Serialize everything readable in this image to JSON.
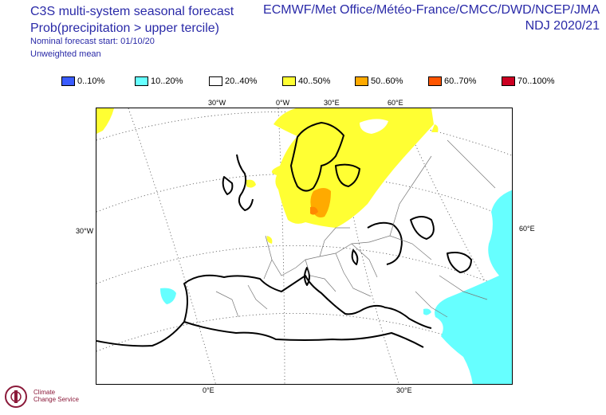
{
  "header": {
    "title_line1": "C3S multi-system seasonal forecast",
    "title_line2": "Prob(precipitation > upper tercile)",
    "forecast_start": "Nominal forecast start: 01/10/20",
    "weighting": "Unweighted mean",
    "sources": "ECMWF/Met Office/Météo-France/CMCC/DWD/NCEP/JMA",
    "period": "NDJ 2020/21"
  },
  "legend": [
    {
      "label": "0..10%",
      "color": "#3a5cff"
    },
    {
      "label": "10..20%",
      "color": "#66ffff"
    },
    {
      "label": "20..40%",
      "color": "#ffffff"
    },
    {
      "label": "40..50%",
      "color": "#ffff33"
    },
    {
      "label": "50..60%",
      "color": "#ffaa00"
    },
    {
      "label": "60..70%",
      "color": "#ff5500"
    },
    {
      "label": "70..100%",
      "color": "#cc0022"
    }
  ],
  "map": {
    "lon_labels_top": [
      "30°W",
      "0°W",
      "30°E",
      "60°E"
    ],
    "lat_label_left": "30°W",
    "lat_label_right": "60°E",
    "lon_labels_bottom": [
      "0°E",
      "30°E"
    ],
    "regions": {
      "yellow_color": "#ffff33",
      "orange_color": "#ffaa00",
      "cyan_color": "#66ffff"
    }
  },
  "logo": {
    "name": "copernicus-climate-change-logo",
    "line1": "Climate",
    "line2": "Change Service"
  }
}
